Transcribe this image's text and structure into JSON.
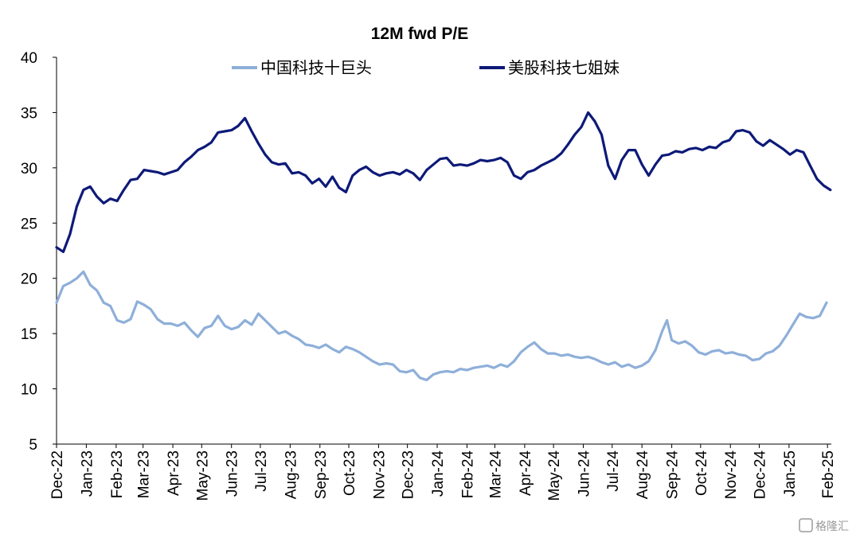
{
  "chart_data": {
    "type": "line",
    "title": "12M fwd P/E",
    "xlabel": "",
    "ylabel": "",
    "ylim": [
      5,
      40
    ],
    "yticks": [
      5,
      10,
      15,
      20,
      25,
      30,
      35,
      40
    ],
    "xlim": [
      "2022-12-15",
      "2025-02-28"
    ],
    "xtick_labels": [
      "Dec-22",
      "Jan-23",
      "Feb-23",
      "Mar-23",
      "Apr-23",
      "May-23",
      "Jun-23",
      "Jul-23",
      "Aug-23",
      "Sep-23",
      "Oct-23",
      "Nov-23",
      "Dec-23",
      "Jan-24",
      "Feb-24",
      "Mar-24",
      "Apr-24",
      "May-24",
      "Jun-24",
      "Jul-24",
      "Aug-24",
      "Sep-24",
      "Oct-24",
      "Nov-24",
      "Dec-24",
      "Jan-25",
      "Feb-25"
    ],
    "grid": false,
    "legend_position": "top",
    "series": [
      {
        "name": "中国科技十巨头",
        "color": "#8eafd9",
        "points": [
          [
            "2022-12-15",
            17.8
          ],
          [
            "2022-12-22",
            19.3
          ],
          [
            "2022-12-29",
            19.6
          ],
          [
            "2023-01-05",
            20.0
          ],
          [
            "2023-01-12",
            20.6
          ],
          [
            "2023-01-19",
            19.4
          ],
          [
            "2023-01-26",
            18.9
          ],
          [
            "2023-02-02",
            17.8
          ],
          [
            "2023-02-09",
            17.5
          ],
          [
            "2023-02-16",
            16.2
          ],
          [
            "2023-02-23",
            16.0
          ],
          [
            "2023-03-02",
            16.3
          ],
          [
            "2023-03-09",
            17.9
          ],
          [
            "2023-03-16",
            17.6
          ],
          [
            "2023-03-23",
            17.2
          ],
          [
            "2023-03-30",
            16.3
          ],
          [
            "2023-04-06",
            15.9
          ],
          [
            "2023-04-13",
            15.9
          ],
          [
            "2023-04-20",
            15.7
          ],
          [
            "2023-04-27",
            16.0
          ],
          [
            "2023-05-04",
            15.3
          ],
          [
            "2023-05-11",
            14.7
          ],
          [
            "2023-05-18",
            15.5
          ],
          [
            "2023-05-25",
            15.7
          ],
          [
            "2023-06-01",
            16.6
          ],
          [
            "2023-06-08",
            15.7
          ],
          [
            "2023-06-15",
            15.4
          ],
          [
            "2023-06-22",
            15.6
          ],
          [
            "2023-06-29",
            16.2
          ],
          [
            "2023-07-06",
            15.8
          ],
          [
            "2023-07-13",
            16.8
          ],
          [
            "2023-07-20",
            16.2
          ],
          [
            "2023-07-27",
            15.6
          ],
          [
            "2023-08-03",
            15.0
          ],
          [
            "2023-08-10",
            15.2
          ],
          [
            "2023-08-17",
            14.8
          ],
          [
            "2023-08-24",
            14.5
          ],
          [
            "2023-08-31",
            14.0
          ],
          [
            "2023-09-07",
            13.9
          ],
          [
            "2023-09-14",
            13.7
          ],
          [
            "2023-09-21",
            14.0
          ],
          [
            "2023-09-28",
            13.6
          ],
          [
            "2023-10-05",
            13.3
          ],
          [
            "2023-10-12",
            13.8
          ],
          [
            "2023-10-19",
            13.6
          ],
          [
            "2023-10-26",
            13.3
          ],
          [
            "2023-11-02",
            12.9
          ],
          [
            "2023-11-09",
            12.5
          ],
          [
            "2023-11-16",
            12.2
          ],
          [
            "2023-11-23",
            12.3
          ],
          [
            "2023-11-30",
            12.2
          ],
          [
            "2023-12-07",
            11.6
          ],
          [
            "2023-12-14",
            11.5
          ],
          [
            "2023-12-21",
            11.7
          ],
          [
            "2023-12-28",
            11.0
          ],
          [
            "2024-01-04",
            10.8
          ],
          [
            "2024-01-11",
            11.3
          ],
          [
            "2024-01-18",
            11.5
          ],
          [
            "2024-01-25",
            11.6
          ],
          [
            "2024-02-01",
            11.5
          ],
          [
            "2024-02-08",
            11.8
          ],
          [
            "2024-02-15",
            11.7
          ],
          [
            "2024-02-22",
            11.9
          ],
          [
            "2024-02-29",
            12.0
          ],
          [
            "2024-03-07",
            12.1
          ],
          [
            "2024-03-14",
            11.9
          ],
          [
            "2024-03-21",
            12.2
          ],
          [
            "2024-03-28",
            12.0
          ],
          [
            "2024-04-04",
            12.5
          ],
          [
            "2024-04-11",
            13.3
          ],
          [
            "2024-04-18",
            13.8
          ],
          [
            "2024-04-25",
            14.2
          ],
          [
            "2024-05-02",
            13.6
          ],
          [
            "2024-05-09",
            13.2
          ],
          [
            "2024-05-16",
            13.2
          ],
          [
            "2024-05-23",
            13.0
          ],
          [
            "2024-05-30",
            13.1
          ],
          [
            "2024-06-06",
            12.9
          ],
          [
            "2024-06-13",
            12.8
          ],
          [
            "2024-06-20",
            12.9
          ],
          [
            "2024-06-27",
            12.7
          ],
          [
            "2024-07-04",
            12.4
          ],
          [
            "2024-07-11",
            12.2
          ],
          [
            "2024-07-18",
            12.4
          ],
          [
            "2024-07-25",
            12.0
          ],
          [
            "2024-08-01",
            12.2
          ],
          [
            "2024-08-08",
            11.9
          ],
          [
            "2024-08-15",
            12.1
          ],
          [
            "2024-08-22",
            12.5
          ],
          [
            "2024-08-29",
            13.5
          ],
          [
            "2024-09-05",
            15.2
          ],
          [
            "2024-09-10",
            16.2
          ],
          [
            "2024-09-15",
            14.4
          ],
          [
            "2024-09-22",
            14.1
          ],
          [
            "2024-09-29",
            14.3
          ],
          [
            "2024-10-06",
            13.9
          ],
          [
            "2024-10-13",
            13.3
          ],
          [
            "2024-10-20",
            13.1
          ],
          [
            "2024-10-27",
            13.4
          ],
          [
            "2024-11-03",
            13.5
          ],
          [
            "2024-11-10",
            13.2
          ],
          [
            "2024-11-17",
            13.3
          ],
          [
            "2024-11-24",
            13.1
          ],
          [
            "2024-12-01",
            13.0
          ],
          [
            "2024-12-08",
            12.6
          ],
          [
            "2024-12-15",
            12.7
          ],
          [
            "2024-12-22",
            13.2
          ],
          [
            "2024-12-29",
            13.4
          ],
          [
            "2025-01-05",
            13.9
          ],
          [
            "2025-01-12",
            14.8
          ],
          [
            "2025-01-19",
            15.8
          ],
          [
            "2025-01-26",
            16.8
          ],
          [
            "2025-02-02",
            16.5
          ],
          [
            "2025-02-09",
            16.4
          ],
          [
            "2025-02-16",
            16.6
          ],
          [
            "2025-02-23",
            17.8
          ]
        ]
      },
      {
        "name": "美股科技七姐妹",
        "color": "#0d1a78",
        "points": [
          [
            "2022-12-15",
            22.8
          ],
          [
            "2022-12-22",
            22.4
          ],
          [
            "2022-12-29",
            24.0
          ],
          [
            "2023-01-05",
            26.5
          ],
          [
            "2023-01-12",
            28.0
          ],
          [
            "2023-01-19",
            28.3
          ],
          [
            "2023-01-26",
            27.4
          ],
          [
            "2023-02-02",
            26.8
          ],
          [
            "2023-02-09",
            27.2
          ],
          [
            "2023-02-16",
            27.0
          ],
          [
            "2023-02-23",
            28.0
          ],
          [
            "2023-03-02",
            28.9
          ],
          [
            "2023-03-09",
            29.0
          ],
          [
            "2023-03-16",
            29.8
          ],
          [
            "2023-03-23",
            29.7
          ],
          [
            "2023-03-30",
            29.6
          ],
          [
            "2023-04-06",
            29.4
          ],
          [
            "2023-04-13",
            29.6
          ],
          [
            "2023-04-20",
            29.8
          ],
          [
            "2023-04-27",
            30.5
          ],
          [
            "2023-05-04",
            31.0
          ],
          [
            "2023-05-11",
            31.6
          ],
          [
            "2023-05-18",
            31.9
          ],
          [
            "2023-05-25",
            32.3
          ],
          [
            "2023-06-01",
            33.2
          ],
          [
            "2023-06-08",
            33.3
          ],
          [
            "2023-06-15",
            33.4
          ],
          [
            "2023-06-22",
            33.8
          ],
          [
            "2023-06-29",
            34.5
          ],
          [
            "2023-07-06",
            33.3
          ],
          [
            "2023-07-13",
            32.2
          ],
          [
            "2023-07-20",
            31.2
          ],
          [
            "2023-07-27",
            30.5
          ],
          [
            "2023-08-03",
            30.3
          ],
          [
            "2023-08-10",
            30.4
          ],
          [
            "2023-08-17",
            29.5
          ],
          [
            "2023-08-24",
            29.6
          ],
          [
            "2023-08-31",
            29.3
          ],
          [
            "2023-09-07",
            28.6
          ],
          [
            "2023-09-14",
            29.0
          ],
          [
            "2023-09-21",
            28.3
          ],
          [
            "2023-09-28",
            29.2
          ],
          [
            "2023-10-05",
            28.2
          ],
          [
            "2023-10-12",
            27.8
          ],
          [
            "2023-10-19",
            29.3
          ],
          [
            "2023-10-26",
            29.8
          ],
          [
            "2023-11-02",
            30.1
          ],
          [
            "2023-11-09",
            29.6
          ],
          [
            "2023-11-16",
            29.3
          ],
          [
            "2023-11-23",
            29.5
          ],
          [
            "2023-11-30",
            29.6
          ],
          [
            "2023-12-07",
            29.4
          ],
          [
            "2023-12-14",
            29.8
          ],
          [
            "2023-12-21",
            29.5
          ],
          [
            "2023-12-28",
            28.9
          ],
          [
            "2024-01-04",
            29.8
          ],
          [
            "2024-01-11",
            30.3
          ],
          [
            "2024-01-18",
            30.8
          ],
          [
            "2024-01-25",
            30.9
          ],
          [
            "2024-02-01",
            30.2
          ],
          [
            "2024-02-08",
            30.3
          ],
          [
            "2024-02-15",
            30.2
          ],
          [
            "2024-02-22",
            30.4
          ],
          [
            "2024-02-29",
            30.7
          ],
          [
            "2024-03-07",
            30.6
          ],
          [
            "2024-03-14",
            30.7
          ],
          [
            "2024-03-21",
            30.9
          ],
          [
            "2024-03-28",
            30.5
          ],
          [
            "2024-04-04",
            29.3
          ],
          [
            "2024-04-11",
            29.0
          ],
          [
            "2024-04-18",
            29.6
          ],
          [
            "2024-04-25",
            29.8
          ],
          [
            "2024-05-02",
            30.2
          ],
          [
            "2024-05-09",
            30.5
          ],
          [
            "2024-05-16",
            30.8
          ],
          [
            "2024-05-23",
            31.3
          ],
          [
            "2024-05-30",
            32.1
          ],
          [
            "2024-06-06",
            33.0
          ],
          [
            "2024-06-13",
            33.7
          ],
          [
            "2024-06-20",
            35.0
          ],
          [
            "2024-06-27",
            34.2
          ],
          [
            "2024-07-04",
            33.0
          ],
          [
            "2024-07-11",
            30.2
          ],
          [
            "2024-07-18",
            29.0
          ],
          [
            "2024-07-25",
            30.7
          ],
          [
            "2024-08-01",
            31.6
          ],
          [
            "2024-08-08",
            31.6
          ],
          [
            "2024-08-15",
            30.3
          ],
          [
            "2024-08-22",
            29.3
          ],
          [
            "2024-08-29",
            30.3
          ],
          [
            "2024-09-05",
            31.1
          ],
          [
            "2024-09-12",
            31.2
          ],
          [
            "2024-09-19",
            31.5
          ],
          [
            "2024-09-26",
            31.4
          ],
          [
            "2024-10-03",
            31.7
          ],
          [
            "2024-10-10",
            31.8
          ],
          [
            "2024-10-17",
            31.6
          ],
          [
            "2024-10-24",
            31.9
          ],
          [
            "2024-10-31",
            31.8
          ],
          [
            "2024-11-07",
            32.3
          ],
          [
            "2024-11-14",
            32.5
          ],
          [
            "2024-11-21",
            33.3
          ],
          [
            "2024-11-28",
            33.4
          ],
          [
            "2024-12-05",
            33.2
          ],
          [
            "2024-12-12",
            32.4
          ],
          [
            "2024-12-19",
            32.0
          ],
          [
            "2024-12-26",
            32.5
          ],
          [
            "2025-01-02",
            32.1
          ],
          [
            "2025-01-09",
            31.7
          ],
          [
            "2025-01-16",
            31.2
          ],
          [
            "2025-01-23",
            31.6
          ],
          [
            "2025-01-30",
            31.4
          ],
          [
            "2025-02-06",
            30.2
          ],
          [
            "2025-02-13",
            29.0
          ],
          [
            "2025-02-20",
            28.4
          ],
          [
            "2025-02-27",
            28.0
          ]
        ]
      }
    ]
  },
  "watermark": "格隆汇"
}
